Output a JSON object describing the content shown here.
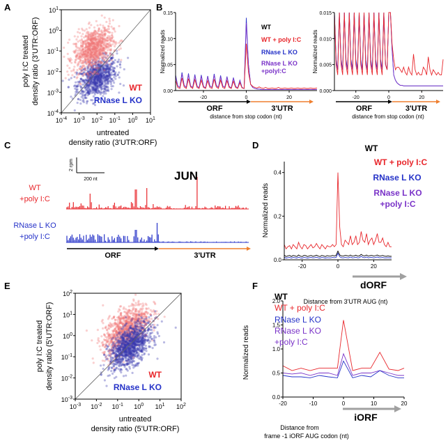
{
  "colors": {
    "wt": "#000000",
    "wt_polyic": "#e8262b",
    "rko": "#2532c8",
    "rko_polyic": "#7a33c8",
    "red_pts": "#f07878",
    "blue_pts": "#3a3ab0",
    "arrow_gray": "#a0a0a0",
    "arrow_orange": "#ef7f2f"
  },
  "panels": {
    "A": {
      "letter": "A"
    },
    "B": {
      "letter": "B"
    },
    "C": {
      "letter": "C"
    },
    "D": {
      "letter": "D"
    },
    "E": {
      "letter": "E"
    },
    "F": {
      "letter": "F"
    }
  },
  "chart_data": [
    {
      "id": "A",
      "type": "scatter",
      "ylabel_line1": "poly I:C treated",
      "ylabel_line2": "density ratio (3'UTR:ORF)",
      "xlabel_line1": "untreated",
      "xlabel_line2": "density ratio (3'UTR:ORF)",
      "x_ticks": [
        {
          "b": "10",
          "e": "-4"
        },
        {
          "b": "10",
          "e": "-3"
        },
        {
          "b": "10",
          "e": "-2"
        },
        {
          "b": "10",
          "e": "-1"
        },
        {
          "b": "10",
          "e": "0"
        },
        {
          "b": "10",
          "e": "1"
        }
      ],
      "y_ticks": [
        {
          "b": "10",
          "e": "-4"
        },
        {
          "b": "10",
          "e": "-3"
        },
        {
          "b": "10",
          "e": "-2"
        },
        {
          "b": "10",
          "e": "-1"
        },
        {
          "b": "10",
          "e": "0"
        },
        {
          "b": "10",
          "e": "1"
        }
      ],
      "xlim_log10": [
        -4,
        1
      ],
      "ylim_log10": [
        -4,
        1
      ],
      "legend": [
        "WT",
        "RNase L KO"
      ],
      "series": [
        {
          "name": "WT",
          "center_log10": [
            -2.2,
            -0.9
          ],
          "spread": [
            0.55,
            0.5
          ],
          "n": 900
        },
        {
          "name": "RNase L KO",
          "center_log10": [
            -2.0,
            -2.3
          ],
          "spread": [
            0.55,
            0.45
          ],
          "n": 900
        }
      ]
    },
    {
      "id": "B1",
      "type": "line",
      "ylabel": "Normalized reads",
      "xlabel": "distance from stop codon (nt)",
      "x_ticks": [
        "-20",
        "0",
        "20"
      ],
      "y_ticks": [
        "0.00",
        "0.05",
        "0.10",
        "0.15"
      ],
      "xlim": [
        -33,
        33
      ],
      "ylim": [
        0,
        0.15
      ],
      "legend": [
        "WT",
        "WT + poly I:C",
        "RNase L KO",
        "RNase L KO",
        "+polyI:C"
      ],
      "region_labels": [
        "ORF",
        "3'UTR"
      ],
      "series": [
        {
          "name": "RNase L KO",
          "values": [
            0.03,
            0.009,
            0.006,
            0.035,
            0.01,
            0.006,
            0.033,
            0.009,
            0.006,
            0.031,
            0.009,
            0.005,
            0.03,
            0.008,
            0.005,
            0.028,
            0.009,
            0.006,
            0.032,
            0.01,
            0.006,
            0.029,
            0.009,
            0.006,
            0.027,
            0.008,
            0.005,
            0.025,
            0.008,
            0.005,
            0.02,
            0.006,
            0.004,
            0.14,
            0.05,
            0.012,
            0.006,
            0.004,
            0.003,
            0.003,
            0.002,
            0.002,
            0.002,
            0.002,
            0.002,
            0.002,
            0.002,
            0.002,
            0.002,
            0.002,
            0.002,
            0.002,
            0.002,
            0.002,
            0.002,
            0.002,
            0.002,
            0.002,
            0.002,
            0.002,
            0.002,
            0.002,
            0.002,
            0.002,
            0.002,
            0.002,
            0.002
          ]
        },
        {
          "name": "RNase L KO +polyI:C",
          "values": [
            0.028,
            0.009,
            0.006,
            0.032,
            0.01,
            0.006,
            0.031,
            0.009,
            0.006,
            0.029,
            0.009,
            0.005,
            0.028,
            0.008,
            0.005,
            0.027,
            0.009,
            0.006,
            0.03,
            0.01,
            0.006,
            0.027,
            0.009,
            0.006,
            0.026,
            0.008,
            0.005,
            0.024,
            0.008,
            0.005,
            0.019,
            0.006,
            0.004,
            0.13,
            0.05,
            0.012,
            0.006,
            0.004,
            0.003,
            0.003,
            0.002,
            0.002,
            0.002,
            0.002,
            0.002,
            0.002,
            0.002,
            0.002,
            0.002,
            0.002,
            0.002,
            0.002,
            0.002,
            0.002,
            0.002,
            0.002,
            0.002,
            0.002,
            0.002,
            0.002,
            0.002,
            0.002,
            0.002,
            0.002,
            0.002,
            0.002,
            0.002
          ]
        },
        {
          "name": "WT + poly I:C",
          "values": [
            0.02,
            0.006,
            0.004,
            0.024,
            0.007,
            0.004,
            0.023,
            0.007,
            0.004,
            0.021,
            0.006,
            0.004,
            0.02,
            0.006,
            0.004,
            0.019,
            0.006,
            0.004,
            0.022,
            0.007,
            0.004,
            0.02,
            0.006,
            0.004,
            0.019,
            0.006,
            0.004,
            0.018,
            0.006,
            0.004,
            0.015,
            0.005,
            0.004,
            0.09,
            0.035,
            0.012,
            0.008,
            0.006,
            0.005,
            0.007,
            0.005,
            0.004,
            0.006,
            0.004,
            0.004,
            0.005,
            0.004,
            0.004,
            0.006,
            0.004,
            0.004,
            0.005,
            0.004,
            0.004,
            0.005,
            0.004,
            0.004,
            0.005,
            0.004,
            0.004,
            0.005,
            0.004,
            0.004,
            0.005,
            0.004,
            0.004,
            0.005
          ]
        }
      ]
    },
    {
      "id": "B2",
      "type": "line",
      "ylabel": "Normalized reads",
      "xlabel": "distance from stop codon (nt)",
      "x_ticks": [
        "-20",
        "0",
        "20"
      ],
      "y_ticks": [
        "0.000",
        "0.005",
        "0.010",
        "0.015"
      ],
      "xlim": [
        -33,
        33
      ],
      "ylim": [
        0,
        0.015
      ],
      "region_labels": [
        "ORF",
        "3'UTR"
      ],
      "series": [
        {
          "name": "RNase L KO",
          "values": [
            0.015,
            0.006,
            0.004,
            0.015,
            0.006,
            0.004,
            0.015,
            0.006,
            0.004,
            0.015,
            0.006,
            0.004,
            0.015,
            0.006,
            0.004,
            0.015,
            0.006,
            0.004,
            0.015,
            0.006,
            0.004,
            0.015,
            0.006,
            0.004,
            0.015,
            0.006,
            0.004,
            0.015,
            0.006,
            0.004,
            0.015,
            0.005,
            0.004,
            0.015,
            0.015,
            0.008,
            0.003,
            0.002,
            0.0015,
            0.0012,
            0.001,
            0.001,
            0.0009,
            0.0009,
            0.0009,
            0.0009,
            0.0009,
            0.0009,
            0.0009,
            0.0009,
            0.0009,
            0.0009,
            0.0009,
            0.0009,
            0.0009,
            0.0009,
            0.0009,
            0.0009,
            0.0009,
            0.0009,
            0.0009,
            0.0009,
            0.0009,
            0.0009,
            0.0009,
            0.0009,
            0.0009
          ]
        },
        {
          "name": "RNase L KO +polyI:C",
          "values": [
            0.015,
            0.0055,
            0.004,
            0.015,
            0.0055,
            0.004,
            0.015,
            0.0055,
            0.004,
            0.015,
            0.0055,
            0.004,
            0.015,
            0.0055,
            0.004,
            0.015,
            0.0055,
            0.004,
            0.015,
            0.0055,
            0.004,
            0.015,
            0.0055,
            0.004,
            0.015,
            0.0055,
            0.004,
            0.015,
            0.0055,
            0.004,
            0.015,
            0.005,
            0.004,
            0.015,
            0.015,
            0.008,
            0.003,
            0.002,
            0.0015,
            0.0012,
            0.001,
            0.001,
            0.0009,
            0.0009,
            0.0009,
            0.0009,
            0.0009,
            0.0009,
            0.0009,
            0.0009,
            0.0009,
            0.0009,
            0.0009,
            0.0009,
            0.0009,
            0.0009,
            0.0009,
            0.0009,
            0.0009,
            0.0009,
            0.0009,
            0.0009,
            0.0009,
            0.0009,
            0.0009,
            0.0009,
            0.0009
          ]
        },
        {
          "name": "WT + poly I:C",
          "values": [
            0.015,
            0.005,
            0.003,
            0.015,
            0.005,
            0.003,
            0.015,
            0.005,
            0.003,
            0.015,
            0.005,
            0.003,
            0.015,
            0.005,
            0.003,
            0.015,
            0.005,
            0.003,
            0.015,
            0.005,
            0.003,
            0.015,
            0.005,
            0.003,
            0.015,
            0.005,
            0.003,
            0.015,
            0.005,
            0.003,
            0.015,
            0.005,
            0.004,
            0.015,
            0.015,
            0.009,
            0.006,
            0.004,
            0.0045,
            0.0045,
            0.004,
            0.0035,
            0.0045,
            0.0035,
            0.003,
            0.0045,
            0.0035,
            0.003,
            0.007,
            0.004,
            0.003,
            0.0035,
            0.003,
            0.003,
            0.0045,
            0.004,
            0.003,
            0.0065,
            0.004,
            0.003,
            0.004,
            0.0035,
            0.003,
            0.0035,
            0.003,
            0.003,
            0.006
          ]
        }
      ]
    },
    {
      "id": "C",
      "type": "track",
      "gene": "JUN",
      "scale_y": "2 rpm",
      "scale_x": "200 nt",
      "tracks": [
        {
          "label_line1": "WT",
          "label_line2": "+poly I:C",
          "n_bars": 140
        },
        {
          "label_line1": "RNase L KO",
          "label_line2": "+poly I:C",
          "n_bars": 140
        }
      ],
      "region_labels": [
        "ORF",
        "3'UTR"
      ]
    },
    {
      "id": "D",
      "type": "line",
      "ylabel": "Normalized reads",
      "xlabel": "Distance from 3'UTR AUG (nt)",
      "x_ticks": [
        "-20",
        "0",
        "20"
      ],
      "y_ticks": [
        "0.0",
        "0.2",
        "0.4"
      ],
      "xlim": [
        -30,
        30
      ],
      "ylim": [
        0,
        0.45
      ],
      "legend": [
        "WT",
        "WT + poly I:C",
        "RNase L KO",
        "RNase L KO",
        "+poly I:C"
      ],
      "arrow_label": "dORF",
      "series": [
        {
          "name": "WT + poly I:C",
          "values": [
            0.07,
            0.05,
            0.06,
            0.065,
            0.05,
            0.07,
            0.06,
            0.05,
            0.08,
            0.06,
            0.05,
            0.07,
            0.065,
            0.05,
            0.06,
            0.07,
            0.055,
            0.06,
            0.075,
            0.06,
            0.05,
            0.07,
            0.06,
            0.05,
            0.065,
            0.06,
            0.06,
            0.07,
            0.06,
            0.07,
            0.4,
            0.15,
            0.07,
            0.06,
            0.09,
            0.08,
            0.07,
            0.11,
            0.07,
            0.08,
            0.11,
            0.07,
            0.08,
            0.13,
            0.09,
            0.08,
            0.12,
            0.07,
            0.09,
            0.1,
            0.07,
            0.09,
            0.12,
            0.08,
            0.08,
            0.1,
            0.07,
            0.06,
            0.08,
            0.06,
            0.06
          ]
        },
        {
          "name": "RNase L KO",
          "values": [
            0.022,
            0.015,
            0.018,
            0.02,
            0.015,
            0.02,
            0.018,
            0.015,
            0.022,
            0.017,
            0.015,
            0.02,
            0.019,
            0.015,
            0.018,
            0.02,
            0.016,
            0.018,
            0.021,
            0.017,
            0.015,
            0.02,
            0.018,
            0.015,
            0.019,
            0.017,
            0.017,
            0.02,
            0.018,
            0.02,
            0.04,
            0.022,
            0.018,
            0.017,
            0.02,
            0.019,
            0.017,
            0.022,
            0.017,
            0.018,
            0.021,
            0.017,
            0.018,
            0.025,
            0.019,
            0.018,
            0.022,
            0.017,
            0.019,
            0.02,
            0.017,
            0.019,
            0.022,
            0.018,
            0.018,
            0.02,
            0.017,
            0.016,
            0.018,
            0.016,
            0.016
          ]
        },
        {
          "name": "RNase L KO +poly I:C",
          "values": [
            0.012,
            0.008,
            0.01,
            0.011,
            0.008,
            0.011,
            0.01,
            0.008,
            0.012,
            0.009,
            0.008,
            0.011,
            0.01,
            0.008,
            0.01,
            0.011,
            0.009,
            0.01,
            0.012,
            0.009,
            0.008,
            0.011,
            0.01,
            0.008,
            0.01,
            0.009,
            0.009,
            0.011,
            0.01,
            0.011,
            0.03,
            0.014,
            0.01,
            0.009,
            0.011,
            0.01,
            0.009,
            0.013,
            0.009,
            0.01,
            0.012,
            0.009,
            0.01,
            0.016,
            0.011,
            0.01,
            0.013,
            0.009,
            0.011,
            0.011,
            0.009,
            0.011,
            0.013,
            0.01,
            0.01,
            0.011,
            0.009,
            0.009,
            0.01,
            0.009,
            0.009
          ]
        }
      ]
    },
    {
      "id": "E",
      "type": "scatter",
      "ylabel_line1": "poly I:C treated",
      "ylabel_line2": "density ratio (5'UTR:ORF)",
      "xlabel_line1": "untreated",
      "xlabel_line2": "density ratio (5'UTR:ORF)",
      "x_ticks": [
        {
          "b": "10",
          "e": "-3"
        },
        {
          "b": "10",
          "e": "-2"
        },
        {
          "b": "10",
          "e": "-1"
        },
        {
          "b": "10",
          "e": "0"
        },
        {
          "b": "10",
          "e": "1"
        },
        {
          "b": "10",
          "e": "2"
        }
      ],
      "y_ticks": [
        {
          "b": "10",
          "e": "-3"
        },
        {
          "b": "10",
          "e": "-2"
        },
        {
          "b": "10",
          "e": "-1"
        },
        {
          "b": "10",
          "e": "0"
        },
        {
          "b": "10",
          "e": "1"
        },
        {
          "b": "10",
          "e": "2"
        }
      ],
      "xlim_log10": [
        -3,
        2
      ],
      "ylim_log10": [
        -3,
        2
      ],
      "legend": [
        "WT",
        "RNase L KO"
      ],
      "series": [
        {
          "name": "WT",
          "center_log10": [
            -0.6,
            0.3
          ],
          "spread": [
            0.55,
            0.5
          ],
          "n": 1000
        },
        {
          "name": "RNase L KO",
          "center_log10": [
            -0.4,
            -0.5
          ],
          "spread": [
            0.5,
            0.45
          ],
          "n": 1100
        }
      ]
    },
    {
      "id": "F",
      "type": "line",
      "ylabel": "Normalized reads",
      "xlabel_line1": "Distance from",
      "xlabel_line2": "frame -1 iORF AUG codon (nt)",
      "x_ticks": [
        "-20",
        "-10",
        "0",
        "10",
        "20"
      ],
      "y_ticks": [
        "0.0",
        "0.5",
        "1.0",
        "1.5",
        "2.0"
      ],
      "xlim": [
        -20,
        20
      ],
      "ylim": [
        0,
        2.0
      ],
      "legend": [
        "WT",
        "WT + poly I:C",
        "RNase L KO",
        "RNase L KO",
        "+poly I:C"
      ],
      "arrow_label": "iORF",
      "x_points": [
        -20,
        -17,
        -14,
        -11,
        -8,
        -5,
        -2,
        0,
        3,
        6,
        9,
        12,
        15,
        18,
        20
      ],
      "series": [
        {
          "name": "WT + poly I:C",
          "values": [
            0.65,
            0.55,
            0.6,
            0.55,
            0.6,
            0.6,
            0.6,
            1.6,
            0.55,
            0.6,
            0.6,
            0.93,
            0.58,
            0.55,
            0.6
          ]
        },
        {
          "name": "RNase L KO +poly I:C",
          "values": [
            0.5,
            0.48,
            0.5,
            0.45,
            0.5,
            0.5,
            0.45,
            0.9,
            0.45,
            0.5,
            0.5,
            0.55,
            0.5,
            0.45,
            0.45
          ]
        },
        {
          "name": "RNase L KO",
          "values": [
            0.45,
            0.42,
            0.42,
            0.4,
            0.45,
            0.42,
            0.4,
            0.75,
            0.4,
            0.45,
            0.42,
            0.55,
            0.45,
            0.4,
            0.4
          ]
        }
      ]
    }
  ]
}
